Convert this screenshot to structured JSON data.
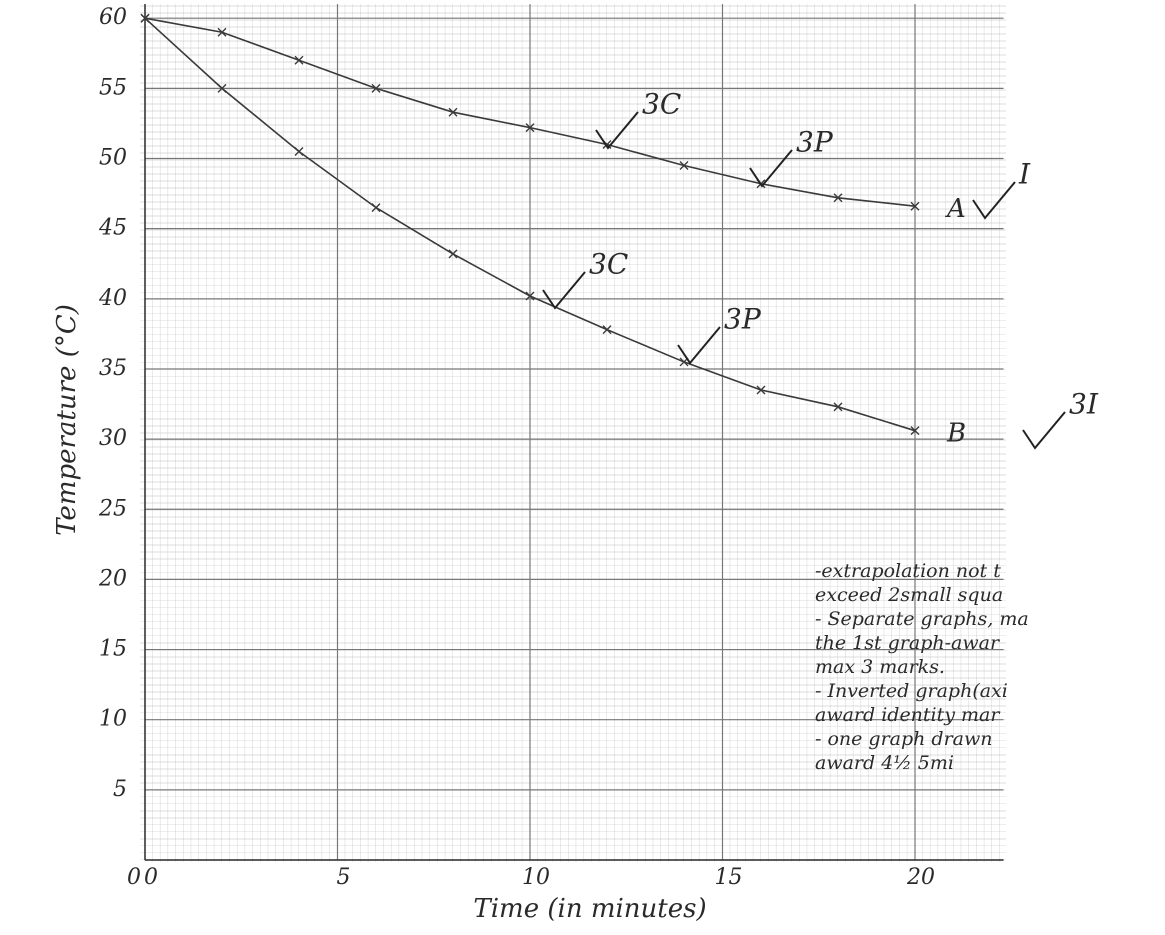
{
  "chart_data": {
    "type": "line",
    "x_label": "Time (in minutes)",
    "y_label": "Temperature (°C)",
    "x": [
      0,
      2,
      4,
      6,
      8,
      10,
      12,
      14,
      16,
      18,
      20
    ],
    "series": [
      {
        "name": "A",
        "color": "#3a3a3a",
        "values": [
          60,
          59,
          57,
          55,
          53.3,
          52.2,
          51,
          49.5,
          48.2,
          47.2,
          46.6
        ]
      },
      {
        "name": "B",
        "color": "#3a3a3a",
        "values": [
          60,
          55,
          50.5,
          46.5,
          43.2,
          40.2,
          37.8,
          35.5,
          33.5,
          32.3,
          30.6
        ]
      }
    ],
    "xlim": [
      0,
      22.3
    ],
    "ylim": [
      0,
      61
    ],
    "xticks": [
      0,
      5,
      10,
      15,
      20
    ],
    "yticks": [
      0,
      5,
      10,
      15,
      20,
      25,
      30,
      35,
      40,
      45,
      50,
      55,
      60
    ],
    "grid": true,
    "marks": [
      "3C",
      "3P",
      "I",
      "3C",
      "3P",
      "3I"
    ],
    "notes": [
      "-extrapolation not t",
      "exceed 2small squa",
      "- Separate graphs, ma",
      "the 1st graph-awar",
      "max 3 marks.",
      "- Inverted graph(axi",
      "award identity mar",
      "- one graph drawn",
      "award 4½ 5mi"
    ]
  }
}
